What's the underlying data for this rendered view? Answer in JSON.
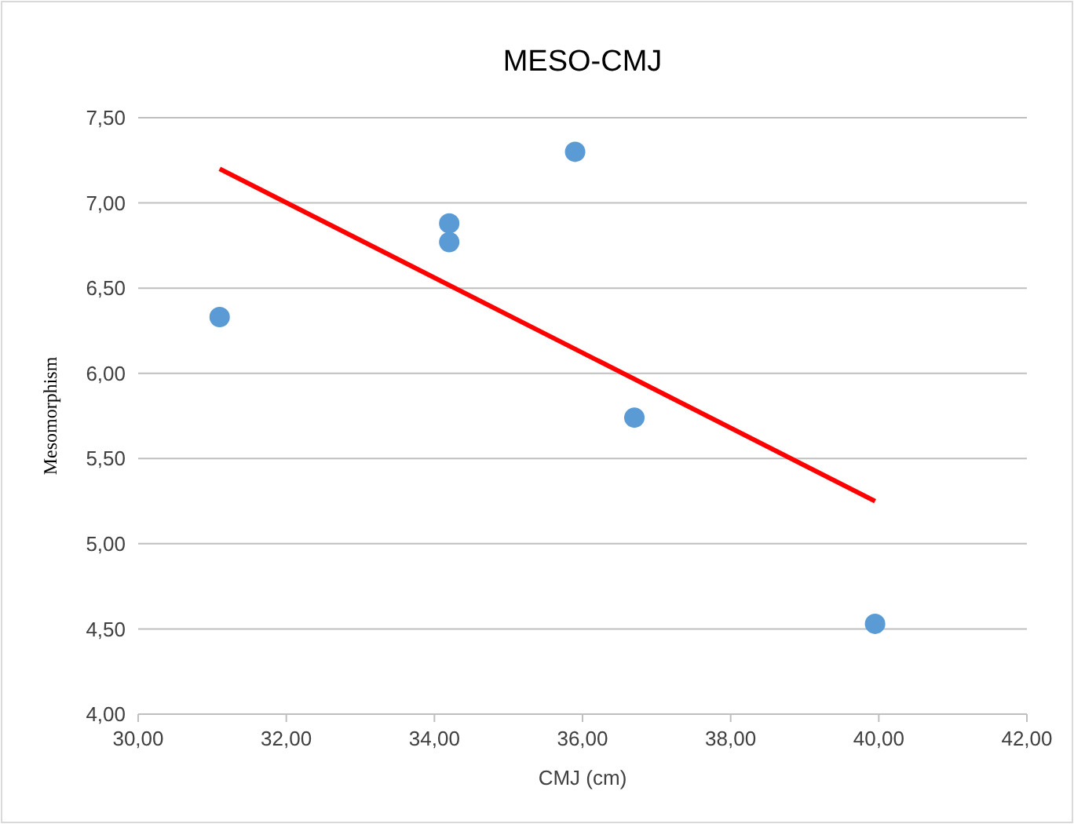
{
  "chart_data": {
    "type": "scatter",
    "title": "MESO-CMJ",
    "xlabel": "CMJ (cm)",
    "ylabel": "Mesomorphism",
    "xlim": [
      30,
      42
    ],
    "xticks": [
      {
        "value": 30,
        "label": "30,00"
      },
      {
        "value": 32,
        "label": "32,00"
      },
      {
        "value": 34,
        "label": "34,00"
      },
      {
        "value": 36,
        "label": "36,00"
      },
      {
        "value": 38,
        "label": "38,00"
      },
      {
        "value": 40,
        "label": "40,00"
      },
      {
        "value": 42,
        "label": "42,00"
      }
    ],
    "ylim": [
      4,
      7.5
    ],
    "yticks": [
      {
        "value": 4,
        "label": "4,00"
      },
      {
        "value": 4.5,
        "label": "4,50"
      },
      {
        "value": 5,
        "label": "5,00"
      },
      {
        "value": 5.5,
        "label": "5,50"
      },
      {
        "value": 6,
        "label": "6,00"
      },
      {
        "value": 6.5,
        "label": "6,50"
      },
      {
        "value": 7,
        "label": "7,00"
      },
      {
        "value": 7.5,
        "label": "7,50"
      }
    ],
    "grid": "y",
    "series": [
      {
        "color": "#5b9bd5",
        "marker": "circle",
        "x": [
          31.1,
          34.2,
          34.2,
          35.9,
          36.7,
          39.95
        ],
        "values": [
          6.33,
          6.88,
          6.77,
          7.3,
          5.74,
          4.53
        ]
      },
      {
        "type": "line",
        "color": "#ff0000",
        "marker": "none",
        "line_style": "solid",
        "x": [
          31.1,
          39.95
        ],
        "values": [
          7.2,
          5.25
        ]
      }
    ]
  }
}
